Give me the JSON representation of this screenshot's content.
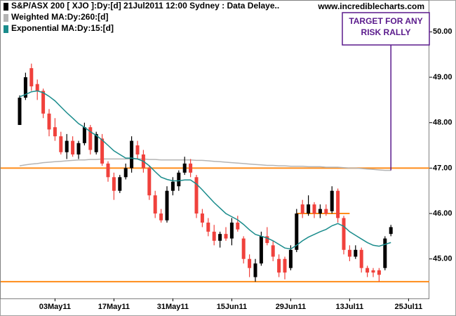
{
  "chart_data": {
    "type": "candlestick",
    "title": "S&P/ASX 200 [ XJO ]:Dy:[d]  21Jul2011 12:00 Sydney : Data Delaye..",
    "watermark": "www.incrediblecharts.com",
    "categories": [
      null,
      null,
      null,
      null,
      null,
      null,
      "03May11",
      null,
      null,
      null,
      null,
      null,
      null,
      null,
      null,
      null,
      "17May11",
      null,
      null,
      null,
      null,
      null,
      null,
      null,
      null,
      null,
      "31May11",
      null,
      null,
      null,
      null,
      null,
      null,
      null,
      null,
      null,
      "15Jun11",
      null,
      null,
      null,
      null,
      null,
      null,
      null,
      null,
      null,
      "29Jun11",
      null,
      null,
      null,
      null,
      null,
      null,
      null,
      null,
      null,
      "13Jul11",
      null,
      null,
      null,
      null,
      null,
      null,
      null,
      null,
      null,
      "25Jul11"
    ],
    "open": [
      47.95,
      48.55,
      49.2,
      48.85,
      48.7,
      48.2,
      47.9,
      47.7,
      47.35,
      47.6,
      47.3,
      47.55,
      47.9,
      47.35,
      47.65,
      47.1,
      46.8,
      46.5,
      46.8,
      47.0,
      47.5,
      47.3,
      47.0,
      46.4,
      46.0,
      45.85,
      46.5,
      46.6,
      46.9,
      47.1,
      46.8,
      46.0,
      45.8,
      45.6,
      45.4,
      45.55,
      45.45,
      45.8,
      45.45,
      45.0,
      44.6,
      44.9,
      45.5,
      45.3,
      45.0,
      45.0,
      44.8,
      45.2,
      46.2,
      46.0,
      46.2,
      46.0,
      46.1,
      46.05,
      46.5,
      45.9,
      45.2,
      45.05,
      45.2,
      44.8,
      44.75,
      44.75,
      44.8,
      45.55,
      null,
      null,
      null
    ],
    "high": [
      48.6,
      49.1,
      49.3,
      48.95,
      48.75,
      48.3,
      48.1,
      47.8,
      47.75,
      47.7,
      47.6,
      48.0,
      47.95,
      47.8,
      47.75,
      47.15,
      46.9,
      46.85,
      47.1,
      47.7,
      47.6,
      47.4,
      47.05,
      46.5,
      46.1,
      46.6,
      46.8,
      46.95,
      47.25,
      47.2,
      46.85,
      46.1,
      45.9,
      45.75,
      45.6,
      45.7,
      45.9,
      45.95,
      45.5,
      45.1,
      45.0,
      45.6,
      45.7,
      45.4,
      45.1,
      45.05,
      45.3,
      46.1,
      46.3,
      46.4,
      46.25,
      46.2,
      46.2,
      46.6,
      46.55,
      45.95,
      45.3,
      45.3,
      45.25,
      44.85,
      44.8,
      44.8,
      45.5,
      45.75,
      null,
      null,
      null
    ],
    "low": [
      47.95,
      48.5,
      48.7,
      48.5,
      48.1,
      47.7,
      47.6,
      47.3,
      47.2,
      47.25,
      47.2,
      47.5,
      47.3,
      47.3,
      47.05,
      46.7,
      46.3,
      46.45,
      46.75,
      46.9,
      47.2,
      46.9,
      46.3,
      45.9,
      45.8,
      45.8,
      46.4,
      46.5,
      46.85,
      46.8,
      45.9,
      45.7,
      45.5,
      45.3,
      45.25,
      45.4,
      45.3,
      45.6,
      44.9,
      44.6,
      44.5,
      44.85,
      45.3,
      44.95,
      44.6,
      44.55,
      44.75,
      45.15,
      45.9,
      45.95,
      45.9,
      45.9,
      45.95,
      46.0,
      45.8,
      45.1,
      44.95,
      45.0,
      44.7,
      44.6,
      44.6,
      44.5,
      44.75,
      45.5,
      null,
      null,
      null
    ],
    "close": [
      48.55,
      49.0,
      48.8,
      48.7,
      48.2,
      47.85,
      47.7,
      47.35,
      47.6,
      47.3,
      47.55,
      47.9,
      47.4,
      47.75,
      47.1,
      46.8,
      46.5,
      46.8,
      47.0,
      47.6,
      47.3,
      47.0,
      46.4,
      46.0,
      45.85,
      46.5,
      46.7,
      46.9,
      47.1,
      46.9,
      46.0,
      45.8,
      45.6,
      45.4,
      45.55,
      45.45,
      45.8,
      45.65,
      45.0,
      44.8,
      44.9,
      45.5,
      45.35,
      45.05,
      44.7,
      44.7,
      45.2,
      46.0,
      46.0,
      46.2,
      46.0,
      46.1,
      46.0,
      46.5,
      45.9,
      45.2,
      45.05,
      45.2,
      44.8,
      44.7,
      44.7,
      44.65,
      45.45,
      45.7,
      null,
      null,
      null
    ],
    "up_color": "#000000",
    "down_color": "#f0413c",
    "series": [
      {
        "name": "Weighted MA:Dy:260:[d]",
        "color": "#b4b4b4",
        "values": [
          47.05,
          47.07,
          47.09,
          47.1,
          47.12,
          47.13,
          47.14,
          47.15,
          47.16,
          47.17,
          47.18,
          47.18,
          47.19,
          47.19,
          47.2,
          47.2,
          47.2,
          47.2,
          47.2,
          47.2,
          47.2,
          47.2,
          47.19,
          47.19,
          47.18,
          47.18,
          47.18,
          47.18,
          47.18,
          47.18,
          47.17,
          47.17,
          47.16,
          47.15,
          47.14,
          47.13,
          47.12,
          47.11,
          47.1,
          47.09,
          47.08,
          47.07,
          47.06,
          47.06,
          47.05,
          47.05,
          47.04,
          47.04,
          47.04,
          47.03,
          47.03,
          47.03,
          47.02,
          47.02,
          47.02,
          47.01,
          47.0,
          47.0,
          46.99,
          46.98,
          46.97,
          46.96,
          46.95,
          46.95,
          null,
          null,
          null
        ]
      },
      {
        "name": "Exponential MA:Dy:15:[d]",
        "color": "#1a8c8c",
        "values": [
          48.57,
          48.62,
          48.68,
          48.7,
          48.66,
          48.58,
          48.48,
          48.35,
          48.22,
          48.1,
          47.98,
          47.9,
          47.8,
          47.72,
          47.62,
          47.5,
          47.38,
          47.3,
          47.22,
          47.22,
          47.2,
          47.15,
          47.05,
          46.92,
          46.8,
          46.75,
          46.72,
          46.72,
          46.74,
          46.74,
          46.65,
          46.52,
          46.38,
          46.24,
          46.12,
          46.0,
          45.93,
          45.86,
          45.76,
          45.64,
          45.54,
          45.5,
          45.46,
          45.4,
          45.32,
          45.24,
          45.22,
          45.3,
          45.4,
          45.48,
          45.54,
          45.6,
          45.65,
          45.73,
          45.78,
          45.72,
          45.6,
          45.52,
          45.44,
          45.36,
          45.3,
          45.28,
          45.32,
          45.36,
          null,
          null,
          null
        ]
      }
    ],
    "levels": [
      {
        "value": 47.0,
        "color": "#ff8c1a",
        "start": 0,
        "end": 66
      },
      {
        "value": 44.5,
        "color": "#ff8c1a",
        "start": 0,
        "end": 66
      },
      {
        "value": 46.0,
        "color": "#ff8c1a",
        "start": 47,
        "end": 56
      }
    ],
    "annotation": {
      "lines": [
        "TARGET FOR ANY",
        "RISK RALLY"
      ],
      "target": 46.95,
      "at": 63,
      "color": "#5a1a8c"
    },
    "ylim": [
      44.13,
      50.67
    ],
    "yticks": [
      {
        "value": 45,
        "label": "45.00"
      },
      {
        "value": 46,
        "label": "46.00"
      },
      {
        "value": 47,
        "label": "47.00"
      },
      {
        "value": 48,
        "label": "48.00"
      },
      {
        "value": 49,
        "label": "49.00"
      },
      {
        "value": 50,
        "label": "50.00"
      }
    ]
  }
}
